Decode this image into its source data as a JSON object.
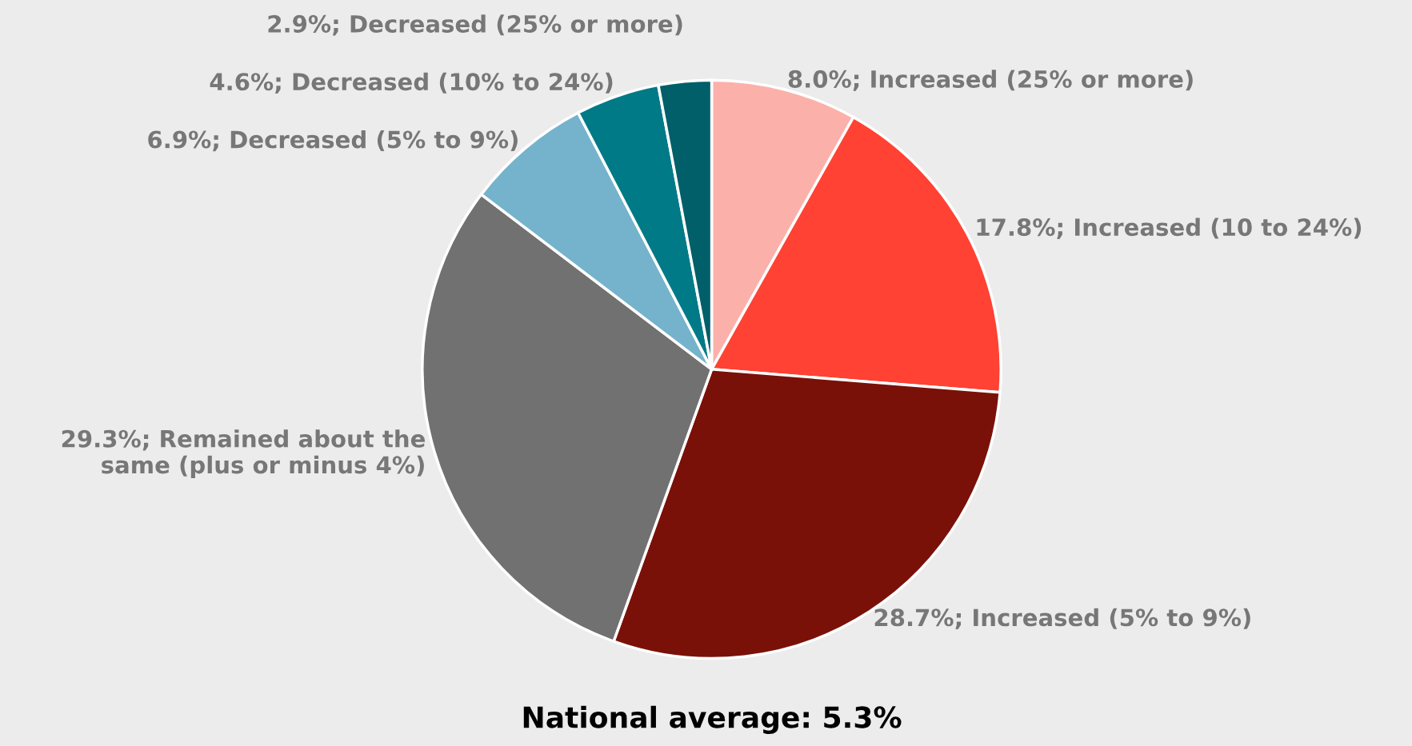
{
  "chart_data": {
    "type": "pie",
    "categories": [
      "8.0%; Increased (25% or more)",
      "17.8%; Increased (10 to 24%)",
      "28.7%; Increased (5% to 9%)",
      "29.3%; Remained about the\nsame (plus or minus 4%)",
      "6.9%; Decreased (5% to 9%)",
      "4.6%; Decreased (10% to 24%)",
      "2.9%; Decreased (25% or more)"
    ],
    "values": [
      8.0,
      17.8,
      28.7,
      29.3,
      6.9,
      4.6,
      2.9
    ],
    "colors": [
      "#fbb1aa",
      "#ff4233",
      "#7a1109",
      "#717171",
      "#74b3cb",
      "#007a87",
      "#005f69"
    ],
    "annotations": [
      "National average: 5.3%"
    ]
  }
}
